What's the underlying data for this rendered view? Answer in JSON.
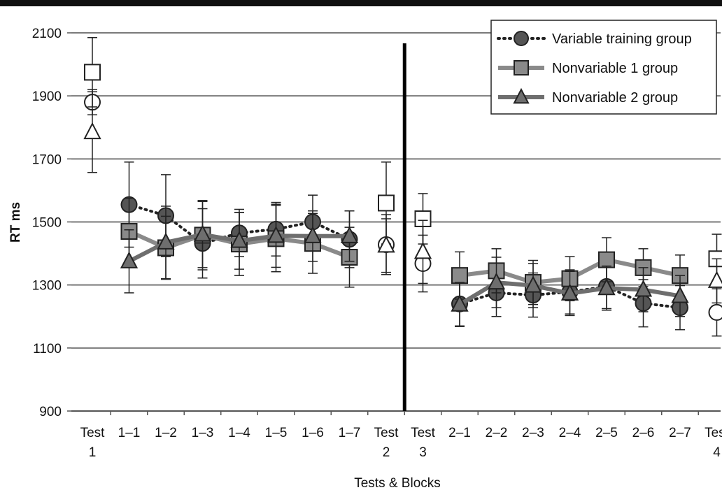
{
  "chart_data": {
    "type": "line",
    "title": "",
    "xlabel": "Tests & Blocks",
    "ylabel": "RT ms",
    "ylim": [
      900,
      2100
    ],
    "yticks": [
      900,
      1100,
      1300,
      1500,
      1700,
      1900,
      2100
    ],
    "grid": true,
    "legend_position": "top-right",
    "categories": [
      [
        "Test",
        "1"
      ],
      [
        "1–1"
      ],
      [
        "1–2"
      ],
      [
        "1–3"
      ],
      [
        "1–4"
      ],
      [
        "1–5"
      ],
      [
        "1–6"
      ],
      [
        "1–7"
      ],
      [
        "Test",
        "2"
      ],
      [
        "Test",
        "3"
      ],
      [
        "2–1"
      ],
      [
        "2–2"
      ],
      [
        "2–3"
      ],
      [
        "2–4"
      ],
      [
        "2–5"
      ],
      [
        "2–6"
      ],
      [
        "2–7"
      ],
      [
        "Test",
        "4"
      ]
    ],
    "divider_between": [
      8,
      9
    ],
    "series": [
      {
        "name": "Variable training group",
        "marker": "circle",
        "line_style": "dotted",
        "color": "#555555",
        "test_values": {
          "0": 1880,
          "8": 1428,
          "9": 1368,
          "17": 1213
        },
        "block_segments": [
          {
            "start": 1,
            "values": [
              1555,
              1520,
              1432,
              1465,
              1477,
              1500,
              1445
            ]
          },
          {
            "start": 10,
            "values": [
              1240,
              1275,
              1268,
              1278,
              1295,
              1242,
              1228
            ]
          }
        ],
        "errors": {
          "0": 40,
          "1": 135,
          "2": 130,
          "3": 110,
          "4": 75,
          "5": 85,
          "6": 85,
          "7": 90,
          "8": 95,
          "9": 90,
          "10": 70,
          "11": 75,
          "12": 70,
          "13": 70,
          "14": 70,
          "15": 75,
          "16": 70,
          "17": 75
        }
      },
      {
        "name": "Nonvariable 1 group",
        "marker": "square",
        "line_style": "solid",
        "color": "#8a8a8a",
        "test_values": {
          "0": 1975,
          "8": 1560,
          "9": 1510,
          "17": 1383
        },
        "block_segments": [
          {
            "start": 1,
            "values": [
              1470,
              1418,
              1458,
              1430,
              1447,
              1432,
              1388
            ]
          },
          {
            "start": 10,
            "values": [
              1330,
              1345,
              1308,
              1320,
              1380,
              1355,
              1330
            ]
          }
        ],
        "errors": {
          "0": 110,
          "1": 105,
          "2": 100,
          "3": 110,
          "4": 100,
          "5": 105,
          "6": 95,
          "7": 95,
          "8": 130,
          "9": 80,
          "10": 75,
          "11": 70,
          "12": 70,
          "13": 70,
          "14": 70,
          "15": 60,
          "16": 65,
          "17": 78
        }
      },
      {
        "name": "Nonvariable 2 group",
        "marker": "triangle",
        "line_style": "solid",
        "color": "#6e6e6e",
        "test_values": {
          "0": 1785,
          "8": 1425,
          "9": 1405,
          "17": 1313
        },
        "block_segments": [
          {
            "start": 1,
            "values": [
              1375,
              1435,
              1460,
              1440,
              1456,
              1455,
              1455
            ]
          },
          {
            "start": 10,
            "values": [
              1238,
              1308,
              1298,
              1273,
              1290,
              1285,
              1265
            ]
          }
        ],
        "errors": {
          "0": 128,
          "1": 100,
          "2": 115,
          "3": 105,
          "4": 90,
          "5": 100,
          "6": 80,
          "7": 80,
          "8": 85,
          "9": 100,
          "10": 70,
          "11": 80,
          "12": 70,
          "13": 70,
          "14": 70,
          "15": 70,
          "16": 65,
          "17": 70
        }
      }
    ]
  }
}
